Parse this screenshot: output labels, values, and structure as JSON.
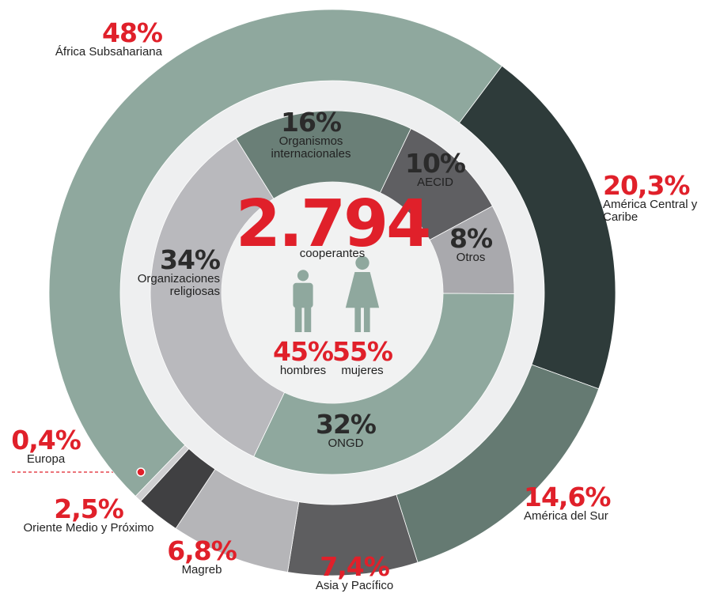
{
  "chart_data": [
    {
      "type": "donut",
      "categories": [
        "África Subsahariana",
        "América Central y Caribe",
        "América del Sur",
        "Asia y Pacífico",
        "Magreb",
        "Oriente Medio y Próximo",
        "Europa"
      ],
      "values": [
        48,
        20.3,
        14.6,
        7.4,
        6.8,
        2.5,
        0.4
      ],
      "value_labels": [
        "48%",
        "20,3%",
        "14,6%",
        "7,4%",
        "6,8%",
        "2,5%",
        "0,4%"
      ],
      "colors": [
        "#8fa89e",
        "#2e3b3a",
        "#657a72",
        "#5e5e60",
        "#b5b5b8",
        "#404042",
        "#cfcfd1"
      ]
    },
    {
      "type": "donut",
      "categories": [
        "Organismos internacionales",
        "AECID",
        "Otros",
        "ONGD",
        "Organizaciones religiosas"
      ],
      "values": [
        16,
        10,
        8,
        32,
        34
      ],
      "value_labels": [
        "16%",
        "10%",
        "8%",
        "32%",
        "34%"
      ],
      "colors": [
        "#6a7f77",
        "#5f5f62",
        "#a9a9ad",
        "#8fa89e",
        "#b9b9bd"
      ]
    }
  ],
  "center": {
    "total": {
      "value": 2794,
      "label": "2.794"
    },
    "caption": "cooperantes",
    "groups": [
      {
        "name": "hombres",
        "value": 45,
        "value_label": "45%"
      },
      {
        "name": "mujeres",
        "value": 55,
        "value_label": "55%"
      }
    ]
  }
}
